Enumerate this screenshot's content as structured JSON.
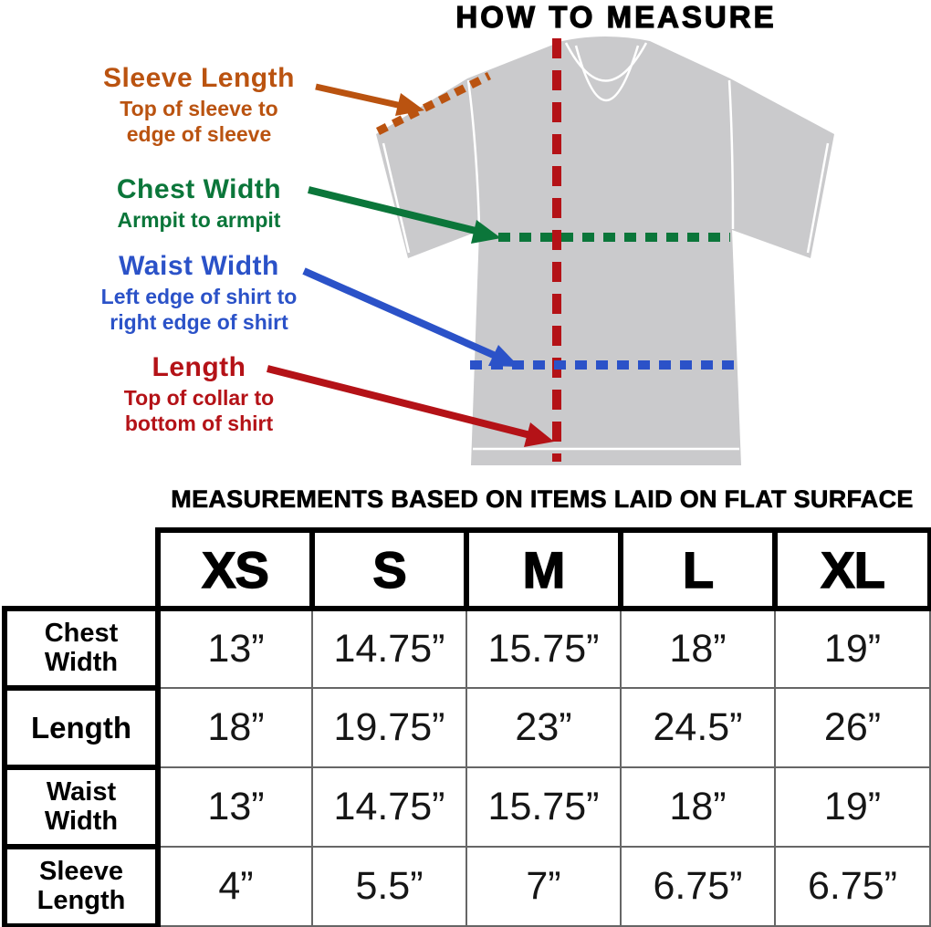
{
  "title": "HOW TO MEASURE",
  "caption": "MEASUREMENTS BASED ON ITEMS LAID ON FLAT SURFACE",
  "colors": {
    "orange": "#BA5310",
    "green": "#0B763A",
    "blue": "#2B52C8",
    "red": "#B41217",
    "shirt": "#CACACC",
    "seam": "#FFFFFF"
  },
  "annotations": [
    {
      "label": "Sleeve Length",
      "desc": "Top of sleeve to\nedge of sleeve",
      "color": "#BA5310"
    },
    {
      "label": "Chest Width",
      "desc": "Armpit to armpit",
      "color": "#0B763A"
    },
    {
      "label": "Waist Width",
      "desc": "Left edge of shirt to\nright edge of shirt",
      "color": "#2B52C8"
    },
    {
      "label": "Length",
      "desc": "Top of collar to\nbottom of shirt",
      "color": "#B41217"
    }
  ],
  "size_table": {
    "columns": [
      "XS",
      "S",
      "M",
      "L",
      "XL"
    ],
    "rows": [
      {
        "label": "Chest Width",
        "values": [
          "13”",
          "14.75”",
          "15.75”",
          "18”",
          "19”"
        ]
      },
      {
        "label": "Length",
        "values": [
          "18”",
          "19.75”",
          "23”",
          "24.5”",
          "26”"
        ]
      },
      {
        "label": "Waist Width",
        "values": [
          "13”",
          "14.75”",
          "15.75”",
          "18”",
          "19”"
        ]
      },
      {
        "label": "Sleeve Length",
        "values": [
          "4”",
          "5.5”",
          "7”",
          "6.75”",
          "6.75”"
        ]
      }
    ]
  },
  "chart_data": {
    "type": "table",
    "title": "HOW TO MEASURE",
    "caption": "MEASUREMENTS BASED ON ITEMS LAID ON FLAT SURFACE",
    "columns": [
      "XS",
      "S",
      "M",
      "L",
      "XL"
    ],
    "rows": [
      "Chest Width",
      "Length",
      "Waist Width",
      "Sleeve Length"
    ],
    "values_inches": [
      [
        13,
        14.75,
        15.75,
        18,
        19
      ],
      [
        18,
        19.75,
        23,
        24.5,
        26
      ],
      [
        13,
        14.75,
        15.75,
        18,
        19
      ],
      [
        4,
        5.5,
        7,
        6.75,
        6.75
      ]
    ]
  }
}
